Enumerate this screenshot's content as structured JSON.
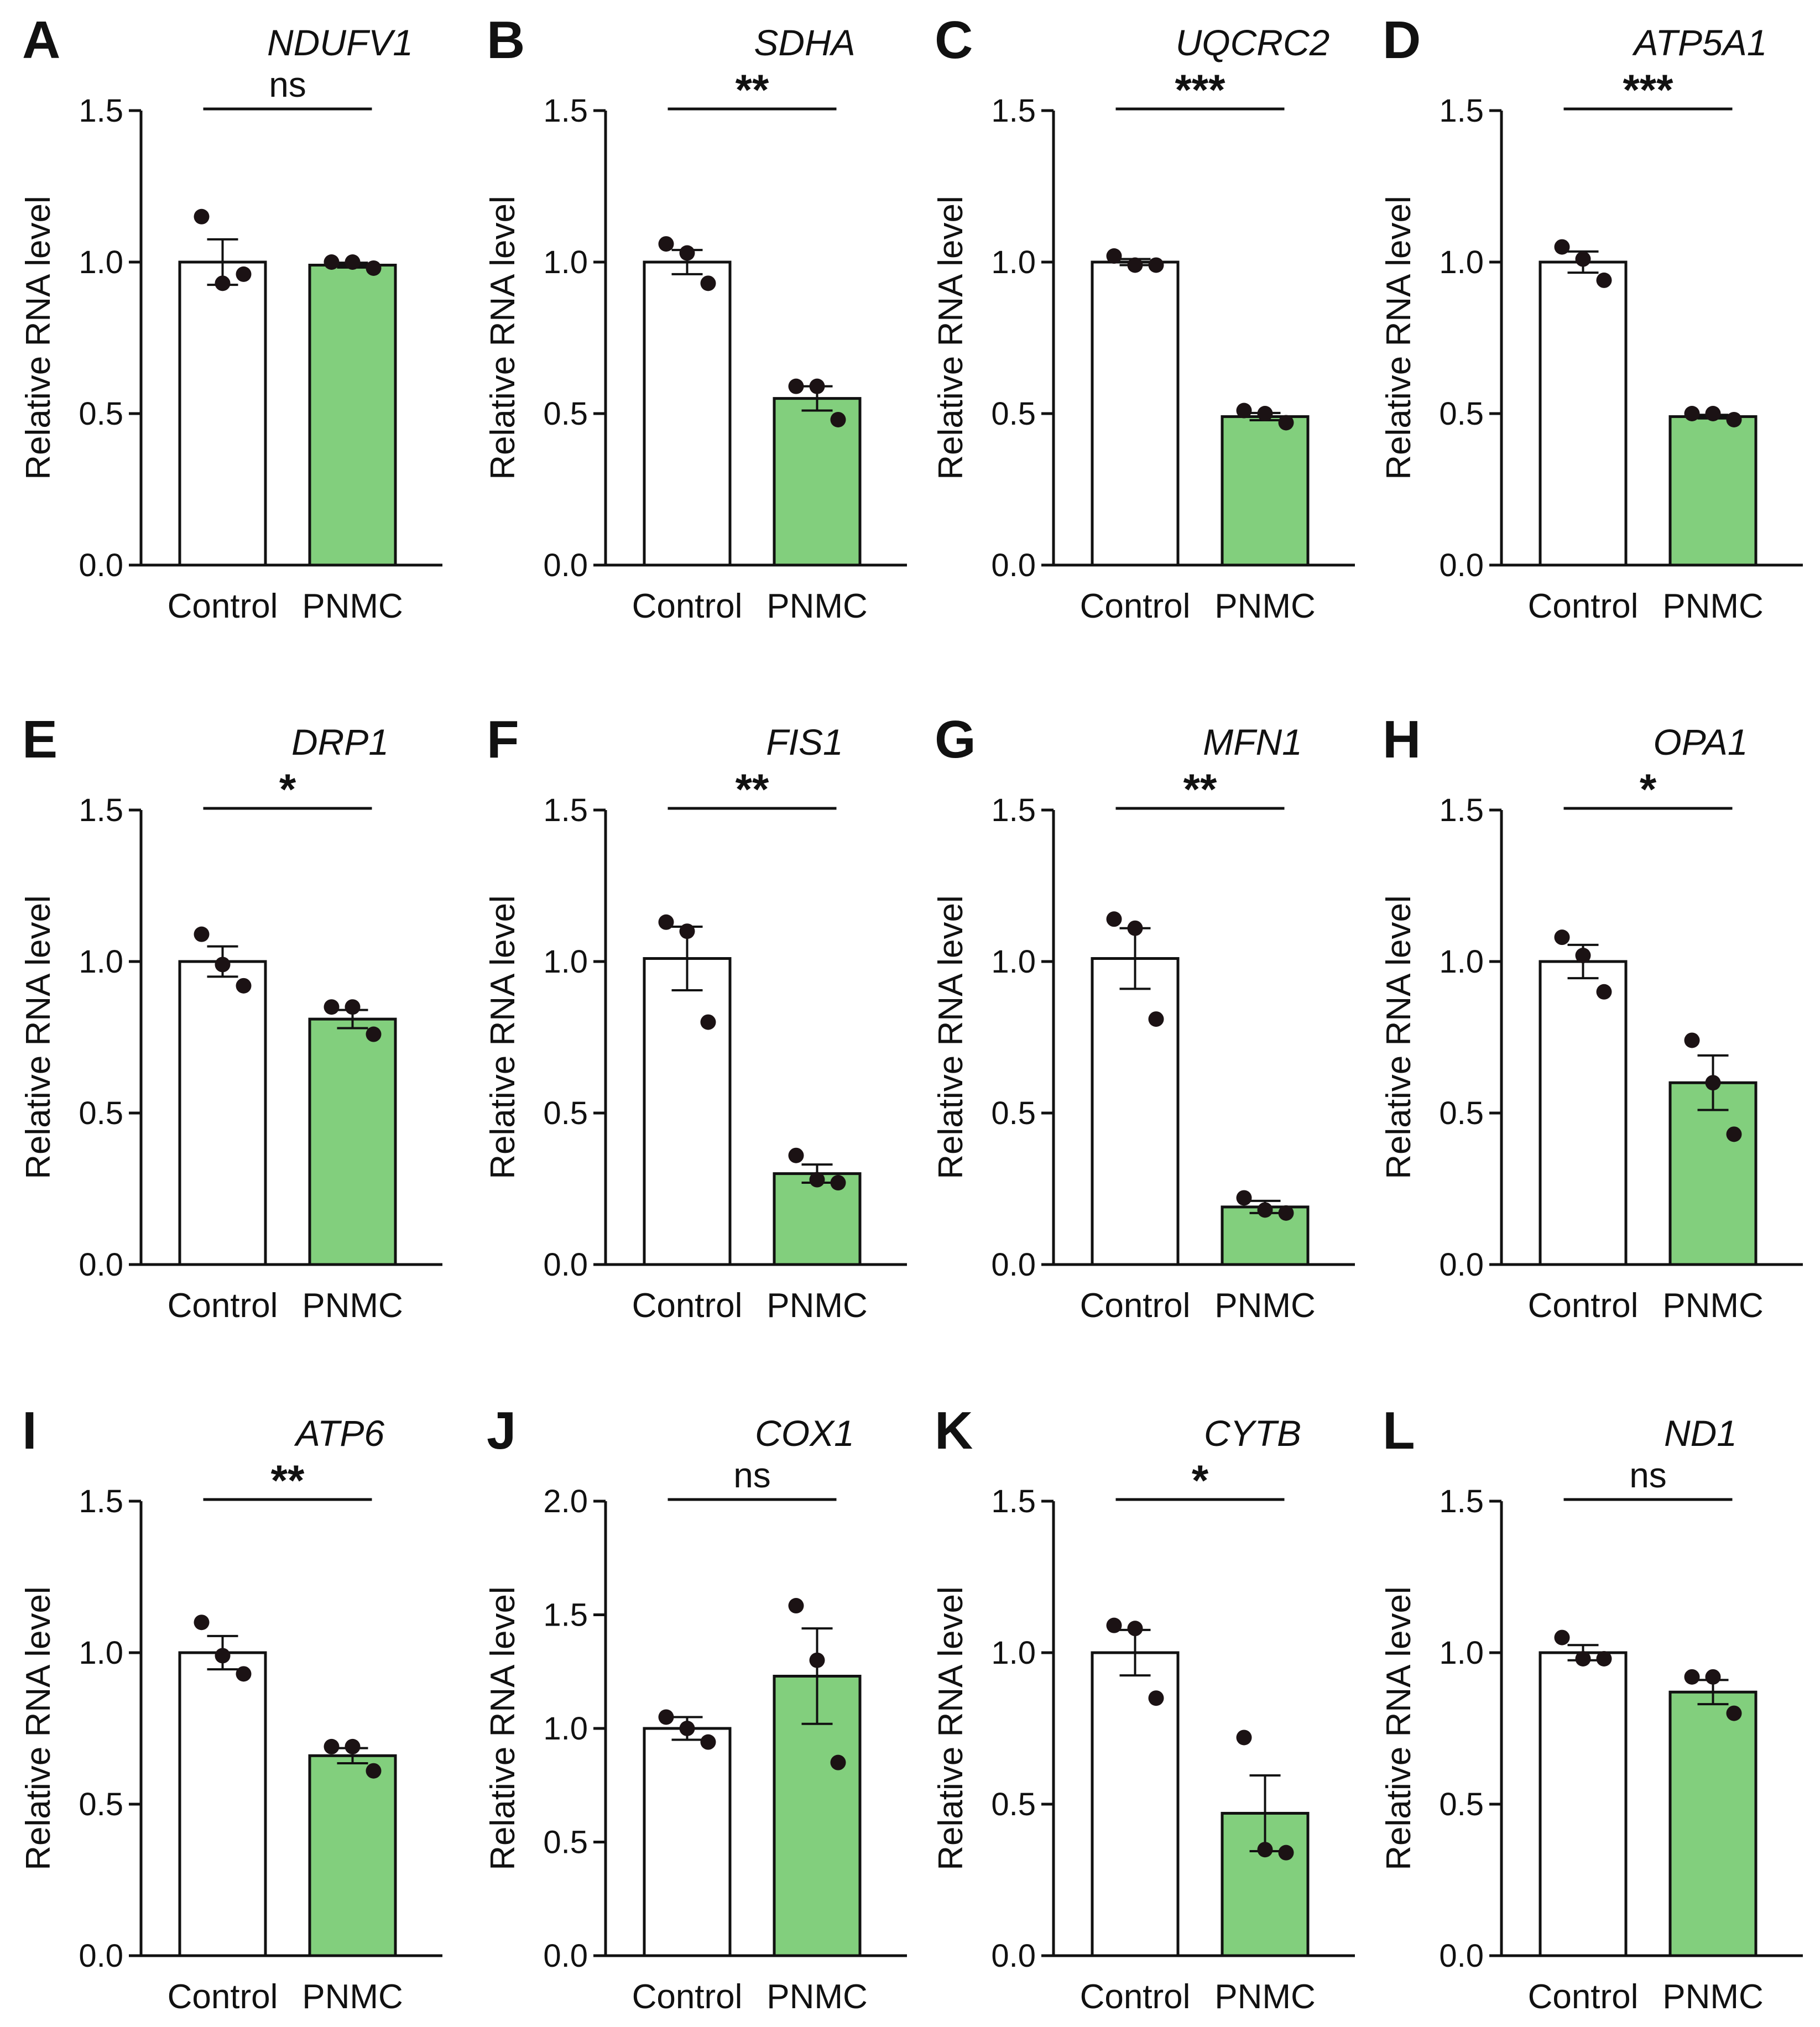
{
  "colors": {
    "control": "#ffffff",
    "pnmc": "#82cf7d",
    "stroke": "#111111",
    "dot": "#1b1214"
  },
  "chart_data": [
    {
      "panel": "A",
      "type": "bar",
      "title": "NDUFV1",
      "ylabel": "Relative RNA level",
      "ylim": [
        0,
        1.5
      ],
      "yticks": [
        "0.0",
        "0.5",
        "1.0",
        "1.5"
      ],
      "categories": [
        "Control",
        "PNMC"
      ],
      "values": [
        1.0,
        0.99
      ],
      "errors": [
        0.075,
        0.008
      ],
      "points": [
        [
          1.15,
          0.93,
          0.96
        ],
        [
          1.0,
          1.0,
          0.98
        ]
      ],
      "significance": "ns"
    },
    {
      "panel": "B",
      "type": "bar",
      "title": "SDHA",
      "ylabel": "Relative RNA level",
      "ylim": [
        0,
        1.5
      ],
      "yticks": [
        "0.0",
        "0.5",
        "1.0",
        "1.5"
      ],
      "categories": [
        "Control",
        "PNMC"
      ],
      "values": [
        1.0,
        0.55
      ],
      "errors": [
        0.04,
        0.04
      ],
      "points": [
        [
          1.06,
          1.03,
          0.93
        ],
        [
          0.59,
          0.59,
          0.48
        ]
      ],
      "significance": "**"
    },
    {
      "panel": "C",
      "type": "bar",
      "title": "UQCRC2",
      "ylabel": "Relative RNA level",
      "ylim": [
        0,
        1.5
      ],
      "yticks": [
        "0.0",
        "0.5",
        "1.0",
        "1.5"
      ],
      "categories": [
        "Control",
        "PNMC"
      ],
      "values": [
        1.0,
        0.49
      ],
      "errors": [
        0.01,
        0.012
      ],
      "points": [
        [
          1.02,
          0.99,
          0.99
        ],
        [
          0.51,
          0.5,
          0.47
        ]
      ],
      "significance": "***"
    },
    {
      "panel": "D",
      "type": "bar",
      "title": "ATP5A1",
      "ylabel": "Relative RNA level",
      "ylim": [
        0,
        1.5
      ],
      "yticks": [
        "0.0",
        "0.5",
        "1.0",
        "1.5"
      ],
      "categories": [
        "Control",
        "PNMC"
      ],
      "values": [
        1.0,
        0.49
      ],
      "errors": [
        0.035,
        0.006
      ],
      "points": [
        [
          1.05,
          1.01,
          0.94
        ],
        [
          0.5,
          0.5,
          0.48
        ]
      ],
      "significance": "***"
    },
    {
      "panel": "E",
      "type": "bar",
      "title": "DRP1",
      "ylabel": "Relative RNA level",
      "ylim": [
        0,
        1.5
      ],
      "yticks": [
        "0.0",
        "0.5",
        "1.0",
        "1.5"
      ],
      "categories": [
        "Control",
        "PNMC"
      ],
      "values": [
        1.0,
        0.81
      ],
      "errors": [
        0.05,
        0.03
      ],
      "points": [
        [
          1.09,
          0.99,
          0.92
        ],
        [
          0.85,
          0.85,
          0.76
        ]
      ],
      "significance": "*"
    },
    {
      "panel": "F",
      "type": "bar",
      "title": "FIS1",
      "ylabel": "Relative RNA level",
      "ylim": [
        0,
        1.5
      ],
      "yticks": [
        "0.0",
        "0.5",
        "1.0",
        "1.5"
      ],
      "categories": [
        "Control",
        "PNMC"
      ],
      "values": [
        1.01,
        0.3
      ],
      "errors": [
        0.105,
        0.03
      ],
      "points": [
        [
          1.13,
          1.1,
          0.8
        ],
        [
          0.36,
          0.28,
          0.27
        ]
      ],
      "significance": "**"
    },
    {
      "panel": "G",
      "type": "bar",
      "title": "MFN1",
      "ylabel": "Relative RNA level",
      "ylim": [
        0,
        1.5
      ],
      "yticks": [
        "0.0",
        "0.5",
        "1.0",
        "1.5"
      ],
      "categories": [
        "Control",
        "PNMC"
      ],
      "values": [
        1.01,
        0.19
      ],
      "errors": [
        0.1,
        0.02
      ],
      "points": [
        [
          1.14,
          1.11,
          0.81
        ],
        [
          0.22,
          0.18,
          0.17
        ]
      ],
      "significance": "**"
    },
    {
      "panel": "H",
      "type": "bar",
      "title": "OPA1",
      "ylabel": "Relative RNA level",
      "ylim": [
        0,
        1.5
      ],
      "yticks": [
        "0.0",
        "0.5",
        "1.0",
        "1.5"
      ],
      "categories": [
        "Control",
        "PNMC"
      ],
      "values": [
        1.0,
        0.6
      ],
      "errors": [
        0.055,
        0.09
      ],
      "points": [
        [
          1.08,
          1.02,
          0.9
        ],
        [
          0.74,
          0.6,
          0.43
        ]
      ],
      "significance": "*"
    },
    {
      "panel": "I",
      "type": "bar",
      "title": "ATP6",
      "ylabel": "Relative RNA level",
      "ylim": [
        0,
        1.5
      ],
      "yticks": [
        "0.0",
        "0.5",
        "1.0",
        "1.5"
      ],
      "categories": [
        "Control",
        "PNMC"
      ],
      "values": [
        1.0,
        0.66
      ],
      "errors": [
        0.055,
        0.025
      ],
      "points": [
        [
          1.1,
          0.99,
          0.93
        ],
        [
          0.69,
          0.69,
          0.61
        ]
      ],
      "significance": "**"
    },
    {
      "panel": "J",
      "type": "bar",
      "title": "COX1",
      "ylabel": "Relative RNA level",
      "ylim": [
        0,
        2.0
      ],
      "yticks": [
        "0.0",
        "0.5",
        "1.0",
        "1.5",
        "2.0"
      ],
      "categories": [
        "Control",
        "PNMC"
      ],
      "values": [
        1.0,
        1.23
      ],
      "errors": [
        0.05,
        0.21
      ],
      "points": [
        [
          1.05,
          1.0,
          0.94
        ],
        [
          1.54,
          1.3,
          0.85
        ]
      ],
      "significance": "ns"
    },
    {
      "panel": "K",
      "type": "bar",
      "title": "CYTB",
      "ylabel": "Relative RNA level",
      "ylim": [
        0,
        1.5
      ],
      "yticks": [
        "0.0",
        "0.5",
        "1.0",
        "1.5"
      ],
      "categories": [
        "Control",
        "PNMC"
      ],
      "values": [
        1.0,
        0.47
      ],
      "errors": [
        0.075,
        0.125
      ],
      "points": [
        [
          1.09,
          1.08,
          0.85
        ],
        [
          0.72,
          0.35,
          0.34
        ]
      ],
      "significance": "*"
    },
    {
      "panel": "L",
      "type": "bar",
      "title": "ND1",
      "ylabel": "Relative RNA level",
      "ylim": [
        0,
        1.5
      ],
      "yticks": [
        "0.0",
        "0.5",
        "1.0",
        "1.5"
      ],
      "categories": [
        "Control",
        "PNMC"
      ],
      "values": [
        1.0,
        0.87
      ],
      "errors": [
        0.025,
        0.04
      ],
      "points": [
        [
          1.05,
          0.98,
          0.98
        ],
        [
          0.92,
          0.92,
          0.8
        ]
      ],
      "significance": "ns"
    }
  ]
}
